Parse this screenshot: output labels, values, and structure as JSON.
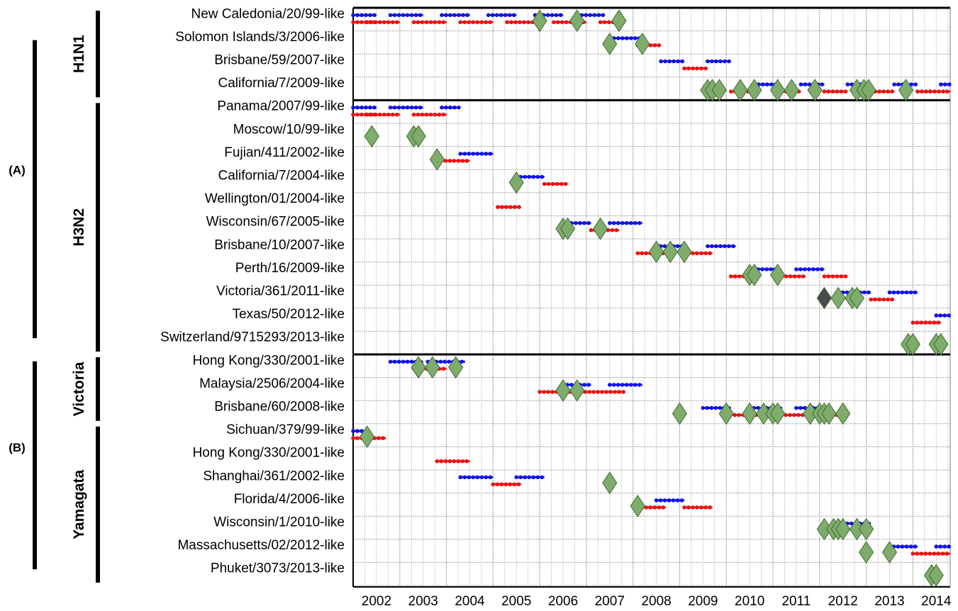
{
  "chart_data": {
    "type": "scatter",
    "x_categories": [
      "2002",
      "2003",
      "2004",
      "2005",
      "2006",
      "2007",
      "2008",
      "2009",
      "2010",
      "2011",
      "2012",
      "2013",
      "2014"
    ],
    "top_groups": [
      {
        "label": "(A)",
        "subgroups": [
          "H1N1",
          "H3N2"
        ]
      },
      {
        "label": "(B)",
        "subgroups": [
          "Victoria",
          "Yamagata"
        ]
      }
    ],
    "subgroups": [
      {
        "label": "H1N1",
        "rows": [
          0,
          3
        ]
      },
      {
        "label": "H3N2",
        "rows": [
          4,
          14
        ]
      },
      {
        "label": "Victoria",
        "rows": [
          15,
          17
        ]
      },
      {
        "label": "Yamagata",
        "rows": [
          18,
          24
        ]
      }
    ],
    "rows": [
      {
        "label": "New Caledonia/20/99-like",
        "blue": [
          [
            2001.5,
            2002.0
          ],
          [
            2002.3,
            2003.0
          ],
          [
            2003.4,
            2004.0
          ],
          [
            2004.4,
            2005.0
          ],
          [
            2005.4,
            2006.0
          ],
          [
            2006.4,
            2006.9
          ]
        ],
        "red": [
          [
            2001.5,
            2002.0
          ],
          [
            2001.8,
            2002.5
          ],
          [
            2002.8,
            2003.5
          ],
          [
            2003.8,
            2004.5
          ],
          [
            2004.8,
            2005.5
          ],
          [
            2005.8,
            2006.5
          ],
          [
            2006.8,
            2007.3
          ]
        ],
        "diamonds": [
          2005.5,
          2006.3,
          2007.2
        ],
        "dark": []
      },
      {
        "label": "Solomon Islands/3/2006-like",
        "blue": [
          [
            2007.0,
            2007.7
          ]
        ],
        "red": [
          [
            2007.6,
            2008.1
          ]
        ],
        "diamonds": [
          2007.0,
          2007.7
        ],
        "dark": []
      },
      {
        "label": "Brisbane/59/2007-like",
        "blue": [
          [
            2008.1,
            2008.6
          ],
          [
            2009.1,
            2009.6
          ]
        ],
        "red": [
          [
            2008.6,
            2009.1
          ]
        ],
        "diamonds": [],
        "dark": []
      },
      {
        "label": "California/7/2009-like",
        "blue": [
          [
            2010.1,
            2010.6
          ],
          [
            2011.1,
            2011.6
          ],
          [
            2012.1,
            2012.6
          ],
          [
            2013.1,
            2013.6
          ],
          [
            2014.1,
            2014.3
          ]
        ],
        "red": [
          [
            2009.6,
            2010.1
          ],
          [
            2010.6,
            2011.1
          ],
          [
            2011.6,
            2012.1
          ],
          [
            2012.6,
            2013.1
          ],
          [
            2013.6,
            2014.3
          ]
        ],
        "diamonds": [
          2009.1,
          2009.2,
          2009.35,
          2009.8,
          2010.1,
          2010.6,
          2010.9,
          2011.4,
          2012.3,
          2012.45,
          2012.55,
          2013.35
        ],
        "dark": []
      },
      {
        "label": "Panama/2007/99-like",
        "blue": [
          [
            2001.5,
            2002.0
          ],
          [
            2002.3,
            2003.0
          ],
          [
            2003.4,
            2003.8
          ]
        ],
        "red": [
          [
            2001.5,
            2002.0
          ],
          [
            2001.8,
            2002.5
          ],
          [
            2002.8,
            2003.5
          ]
        ],
        "diamonds": [],
        "dark": []
      },
      {
        "label": "Moscow/10/99-like",
        "blue": [],
        "red": [],
        "diamonds": [
          2001.9,
          2002.8,
          2002.9
        ],
        "dark": []
      },
      {
        "label": "Fujian/411/2002-like",
        "blue": [
          [
            2003.8,
            2004.5
          ]
        ],
        "red": [
          [
            2003.3,
            2004.0
          ]
        ],
        "diamonds": [
          2003.3
        ],
        "dark": []
      },
      {
        "label": "California/7/2004-like",
        "blue": [
          [
            2005.0,
            2005.6
          ]
        ],
        "red": [
          [
            2005.6,
            2006.1
          ]
        ],
        "diamonds": [
          2005.0
        ],
        "dark": []
      },
      {
        "label": "Wellington/01/2004-like",
        "blue": [],
        "red": [
          [
            2004.6,
            2005.1
          ]
        ],
        "diamonds": [],
        "dark": []
      },
      {
        "label": "Wisconsin/67/2005-like",
        "blue": [
          [
            2006.0,
            2006.6
          ],
          [
            2007.0,
            2007.7
          ]
        ],
        "red": [
          [
            2006.6,
            2007.2
          ]
        ],
        "diamonds": [
          2006.0,
          2006.1,
          2006.8
        ],
        "dark": []
      },
      {
        "label": "Brisbane/10/2007-like",
        "blue": [
          [
            2008.0,
            2008.6
          ],
          [
            2009.1,
            2009.7
          ]
        ],
        "red": [
          [
            2007.6,
            2008.2
          ],
          [
            2008.6,
            2009.2
          ]
        ],
        "diamonds": [
          2008.0,
          2008.3,
          2008.6
        ],
        "dark": []
      },
      {
        "label": "Perth/16/2009-like",
        "blue": [
          [
            2010.0,
            2010.6
          ],
          [
            2011.0,
            2011.6
          ]
        ],
        "red": [
          [
            2009.6,
            2010.2
          ],
          [
            2010.6,
            2011.2
          ],
          [
            2011.6,
            2012.1
          ]
        ],
        "diamonds": [
          2010.0,
          2010.1,
          2010.6
        ],
        "dark": []
      },
      {
        "label": "Victoria/361/2011-like",
        "blue": [
          [
            2012.0,
            2012.6
          ],
          [
            2013.0,
            2013.6
          ]
        ],
        "red": [
          [
            2012.6,
            2013.1
          ]
        ],
        "diamonds": [
          2011.9,
          2012.2,
          2012.3
        ],
        "dark": [
          2011.6
        ]
      },
      {
        "label": "Texas/50/2012-like",
        "blue": [
          [
            2014.0,
            2014.3
          ]
        ],
        "red": [
          [
            2013.5,
            2014.1
          ]
        ],
        "diamonds": [],
        "dark": []
      },
      {
        "label": "Switzerland/9715293/2013-like",
        "blue": [],
        "red": [],
        "diamonds": [
          2013.4,
          2013.5,
          2014.0,
          2014.1
        ],
        "dark": []
      },
      {
        "label": "Hong Kong/330/2001-like",
        "blue": [
          [
            2002.3,
            2003.0
          ],
          [
            2003.1,
            2003.9
          ]
        ],
        "red": [
          [
            2002.8,
            2003.5
          ]
        ],
        "diamonds": [
          2002.9,
          2003.2,
          2003.7
        ],
        "dark": []
      },
      {
        "label": "Malaysia/2506/2004-like",
        "blue": [
          [
            2006.0,
            2006.6
          ],
          [
            2007.0,
            2007.7
          ]
        ],
        "red": [
          [
            2005.5,
            2006.2
          ],
          [
            2006.2,
            2007.3
          ]
        ],
        "diamonds": [
          2006.0,
          2006.3
        ],
        "dark": []
      },
      {
        "label": "Brisbane/60/2008-like",
        "blue": [
          [
            2009.0,
            2009.6
          ],
          [
            2010.0,
            2010.7
          ],
          [
            2011.0,
            2011.7
          ]
        ],
        "red": [
          [
            2009.5,
            2010.2
          ],
          [
            2010.5,
            2011.2
          ],
          [
            2011.5,
            2012.1
          ]
        ],
        "diamonds": [
          2008.5,
          2009.5,
          2010.0,
          2010.3,
          2010.5,
          2010.6,
          2011.3,
          2011.5,
          2011.6,
          2011.7,
          2012.0
        ],
        "dark": []
      },
      {
        "label": "Sichuan/379/99-like",
        "blue": [
          [
            2001.5,
            2001.85
          ]
        ],
        "red": [
          [
            2001.5,
            2002.2
          ]
        ],
        "diamonds": [
          2001.8
        ],
        "dark": []
      },
      {
        "label": "Hong Kong/330/2001-like",
        "blue": [],
        "red": [
          [
            2003.3,
            2004.0
          ]
        ],
        "diamonds": [],
        "dark": []
      },
      {
        "label": "Shanghai/361/2002-like",
        "blue": [
          [
            2003.8,
            2004.5
          ],
          [
            2005.0,
            2005.6
          ]
        ],
        "red": [
          [
            2004.5,
            2005.1
          ]
        ],
        "diamonds": [
          2007.0
        ],
        "dark": []
      },
      {
        "label": "Florida/4/2006-like",
        "blue": [
          [
            2008.0,
            2008.6
          ]
        ],
        "red": [
          [
            2007.6,
            2008.2
          ],
          [
            2008.6,
            2009.2
          ]
        ],
        "diamonds": [
          2007.6
        ],
        "dark": []
      },
      {
        "label": "Wisconsin/1/2010-like",
        "blue": [
          [
            2012.0,
            2012.6
          ]
        ],
        "red": [],
        "diamonds": [
          2011.6,
          2011.8,
          2011.9,
          2012.0,
          2012.3,
          2012.5
        ],
        "dark": []
      },
      {
        "label": "Massachusetts/02/2012-like",
        "blue": [
          [
            2013.0,
            2013.6
          ],
          [
            2014.0,
            2014.3
          ]
        ],
        "red": [
          [
            2013.5,
            2014.3
          ]
        ],
        "diamonds": [
          2012.5,
          2013.0
        ],
        "dark": []
      },
      {
        "label": "Phuket/3073/2013-like",
        "blue": [],
        "red": [],
        "diamonds": [
          2013.9,
          2014.0
        ],
        "dark": []
      }
    ],
    "group_separators_after_rows": [
      3,
      14
    ],
    "colors": {
      "blue": "#1212e8",
      "red": "#ee1111",
      "diamond": "#7fac6b",
      "diamond_edge": "#3f6a34",
      "dark_diamond": "#4a4a4a",
      "grid": "#a8a8a8"
    }
  }
}
